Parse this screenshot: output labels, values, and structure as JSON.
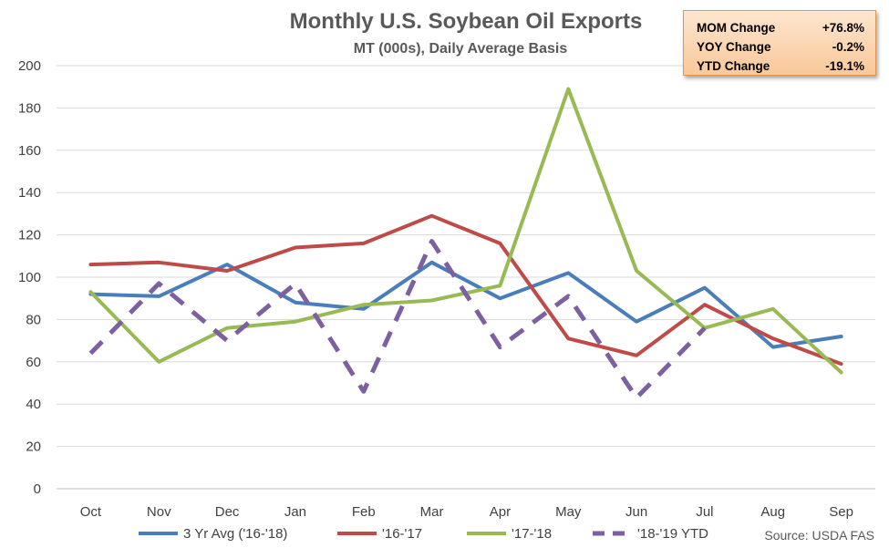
{
  "stats": [
    {
      "label": "MOM Change",
      "value": "+76.8%"
    },
    {
      "label": "YOY Change",
      "value": "-0.2%"
    },
    {
      "label": "YTD Change",
      "value": "-19.1%"
    }
  ],
  "source": "Source: USDA FAS",
  "chart_data": {
    "type": "line",
    "title": "Monthly U.S. Soybean Oil Exports",
    "subtitle": "MT (000s), Daily Average Basis",
    "categories": [
      "Oct",
      "Nov",
      "Dec",
      "Jan",
      "Feb",
      "Mar",
      "Apr",
      "May",
      "Jun",
      "Jul",
      "Aug",
      "Sep"
    ],
    "ylim": [
      0,
      200
    ],
    "yticks": [
      "0",
      "20",
      "40",
      "60",
      "80",
      "100",
      "120",
      "140",
      "160",
      "180",
      "200"
    ],
    "grid": true,
    "legend_position": "bottom",
    "series": [
      {
        "name": "3 Yr Avg ('16-'18)",
        "color": "#4a7ebb",
        "dashed": false,
        "values": [
          92,
          91,
          106,
          88,
          85,
          107,
          90,
          102,
          79,
          95,
          67,
          72
        ]
      },
      {
        "name": "'16-'17",
        "color": "#be4b48",
        "dashed": false,
        "values": [
          106,
          107,
          103,
          114,
          116,
          129,
          116,
          71,
          63,
          87,
          71,
          59
        ]
      },
      {
        "name": "'17-'18",
        "color": "#98b954",
        "dashed": false,
        "values": [
          93,
          60,
          76,
          79,
          87,
          89,
          96,
          189,
          103,
          76,
          85,
          55
        ]
      },
      {
        "name": "'18-'19 YTD",
        "color": "#7d60a0",
        "dashed": true,
        "values": [
          64,
          97,
          70,
          97,
          46,
          117,
          67,
          91,
          43,
          76,
          null,
          null
        ]
      }
    ]
  }
}
